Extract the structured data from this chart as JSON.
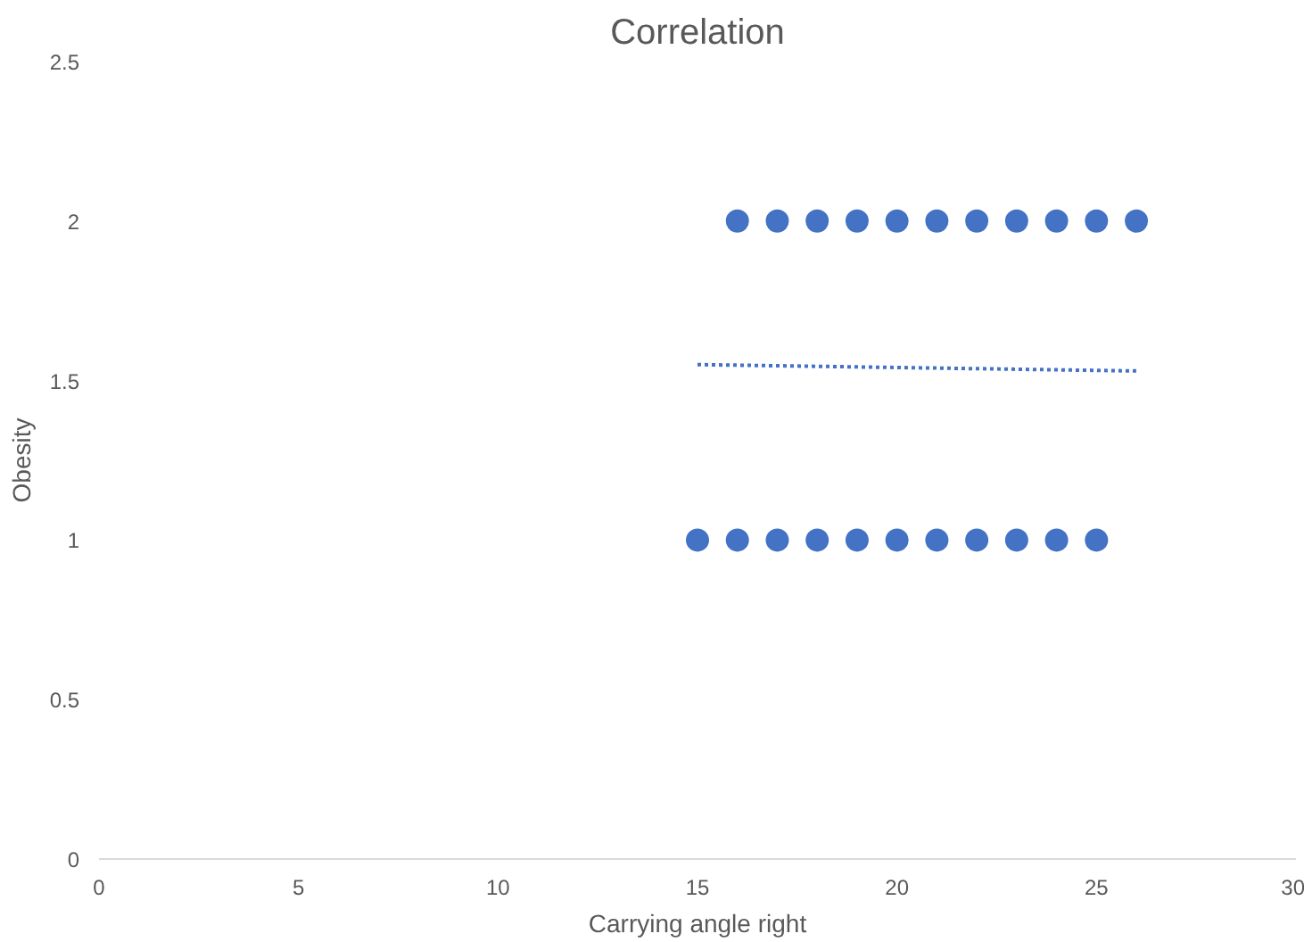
{
  "chart_data": {
    "type": "scatter",
    "title": "Correlation",
    "xlabel": "Carrying angle right",
    "ylabel": "Obesity",
    "series": [
      {
        "color": "#4472c4",
        "marker": "circle",
        "x": [
          16,
          17,
          18,
          19,
          20,
          21,
          22,
          23,
          24,
          25,
          26,
          15,
          16,
          17,
          18,
          19,
          20,
          21,
          22,
          23,
          24,
          25
        ],
        "values": [
          2,
          2,
          2,
          2,
          2,
          2,
          2,
          2,
          2,
          2,
          2,
          1,
          1,
          1,
          1,
          1,
          1,
          1,
          1,
          1,
          1,
          1
        ]
      },
      {
        "type": "line",
        "color": "#4472c4",
        "x": [
          15,
          26
        ],
        "values": [
          1.55,
          1.53
        ],
        "line_style": "dotted"
      }
    ],
    "xlim": [
      0,
      30
    ],
    "xticks": [
      0,
      5,
      10,
      15,
      20,
      25,
      30
    ],
    "ylim": [
      0,
      2.5
    ],
    "yticks": [
      0,
      0.5,
      1,
      1.5,
      2,
      2.5
    ],
    "grid": false
  }
}
